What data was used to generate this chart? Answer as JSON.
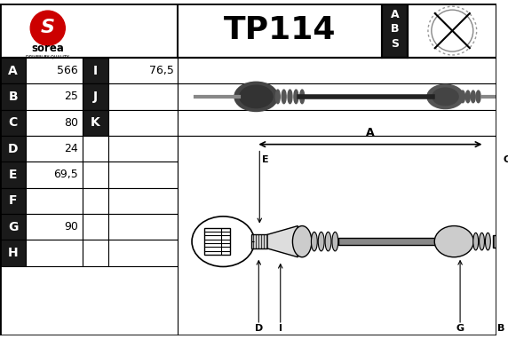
{
  "title": "TP114",
  "bg_color": "#ffffff",
  "border_color": "#000000",
  "black_cell_bg": "#1a1a1a",
  "rows": [
    {
      "label": "A",
      "value": "566",
      "label2": "I",
      "value2": "76,5"
    },
    {
      "label": "B",
      "value": "25",
      "label2": "J",
      "value2": ""
    },
    {
      "label": "C",
      "value": "80",
      "label2": "K",
      "value2": ""
    },
    {
      "label": "D",
      "value": "24",
      "label2": "",
      "value2": ""
    },
    {
      "label": "E",
      "value": "69,5",
      "label2": "",
      "value2": ""
    },
    {
      "label": "F",
      "value": "",
      "label2": "",
      "value2": ""
    },
    {
      "label": "G",
      "value": "90",
      "label2": "",
      "value2": ""
    },
    {
      "label": "H",
      "value": "",
      "label2": "",
      "value2": ""
    }
  ],
  "abs_labels": [
    "A",
    "B",
    "S"
  ],
  "sorea_red": "#cc0000",
  "line_color": "#000000"
}
